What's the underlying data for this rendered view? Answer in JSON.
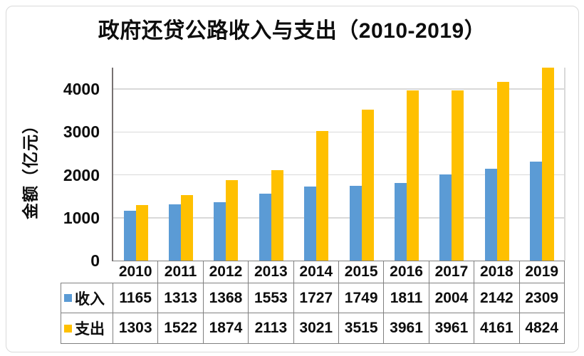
{
  "title": "政府还贷公路收入与支出（2010-2019）",
  "colors": {
    "income_bar": "#5B9BD5",
    "expense_bar": "#FFC000",
    "gridline": "#D9D9D9",
    "axis": "#767171",
    "table_border": "#808080",
    "text": "#0D0D0D",
    "card_border": "#D9D9D9"
  },
  "chart_data": {
    "type": "bar",
    "title": "政府还贷公路收入与支出（2010-2019）",
    "xlabel": "",
    "ylabel": "金额（亿元）",
    "categories": [
      "2010",
      "2011",
      "2012",
      "2013",
      "2014",
      "2015",
      "2016",
      "2017",
      "2018",
      "2019"
    ],
    "series": [
      {
        "name": "收入",
        "color": "#5B9BD5",
        "values": [
          1165,
          1313,
          1368,
          1553,
          1727,
          1749,
          1811,
          2004,
          2142,
          2309
        ]
      },
      {
        "name": "支出",
        "color": "#FFC000",
        "values": [
          1303,
          1522,
          1874,
          2113,
          3021,
          3515,
          3961,
          3961,
          4161,
          4824
        ]
      }
    ],
    "ylim": [
      0,
      4500
    ],
    "yticks": [
      0,
      1000,
      2000,
      3000,
      4000
    ],
    "grid": true,
    "grid_direction": "horizontal",
    "legend_position": "data-table-left",
    "data_table": true,
    "note": "2019 支出 bar (4824) is clipped at the plot top (axis max ~4500)"
  }
}
